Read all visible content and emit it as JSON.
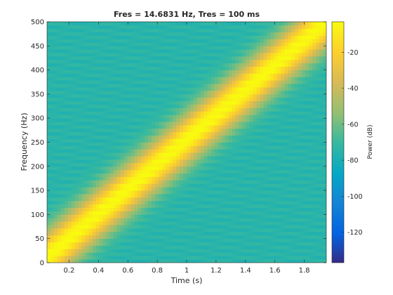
{
  "chart_data": {
    "type": "heatmap",
    "title": "Fres = 14.6831 Hz, Tres = 100 ms",
    "xlabel": "Time (s)",
    "ylabel": "Frequency (Hz)",
    "colorbar_label": "Power (dB)",
    "xlim": [
      0.05,
      1.95
    ],
    "ylim": [
      0,
      500
    ],
    "clim": [
      -137,
      -3
    ],
    "x_ticks": [
      0.2,
      0.4,
      0.6,
      0.8,
      1,
      1.2,
      1.4,
      1.6,
      1.8
    ],
    "x_tick_labels": [
      "0.2",
      "0.4",
      "0.6",
      "0.8",
      "1",
      "1.2",
      "1.4",
      "1.6",
      "1.8"
    ],
    "y_ticks": [
      0,
      50,
      100,
      150,
      200,
      250,
      300,
      350,
      400,
      450,
      500
    ],
    "y_tick_labels": [
      "0",
      "50",
      "100",
      "150",
      "200",
      "250",
      "300",
      "350",
      "400",
      "450",
      "500"
    ],
    "colorbar_ticks": [
      -120,
      -100,
      -80,
      -60,
      -40,
      -20
    ],
    "colorbar_tick_labels": [
      "-120",
      "-100",
      "-80",
      "-60",
      "-40",
      "-20"
    ],
    "colormap": "parula",
    "ridge": {
      "description_values": "linear chirp",
      "start": {
        "time": 0.05,
        "frequency": 12
      },
      "end": {
        "time": 1.95,
        "frequency": 500
      },
      "peak_power_db": -3,
      "background_power_db": -75
    }
  }
}
